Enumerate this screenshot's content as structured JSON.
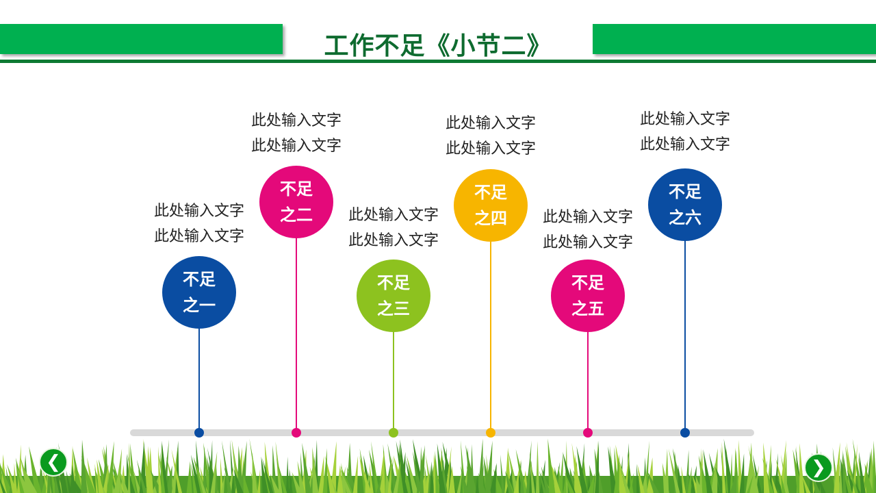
{
  "header": {
    "title": "工作不足《小节二》",
    "accent": "#00b050"
  },
  "items": [
    {
      "line1": "不足",
      "line2": "之一",
      "text1": "此处输入文字",
      "text2": "此处输入文字",
      "color": "#0a4da2"
    },
    {
      "line1": "不足",
      "line2": "之二",
      "text1": "此处输入文字",
      "text2": "此处输入文字",
      "color": "#e4097a"
    },
    {
      "line1": "不足",
      "line2": "之三",
      "text1": "此处输入文字",
      "text2": "此处输入文字",
      "color": "#8dc21f"
    },
    {
      "line1": "不足",
      "line2": "之四",
      "text1": "此处输入文字",
      "text2": "此处输入文字",
      "color": "#f7b500"
    },
    {
      "line1": "不足",
      "line2": "之五",
      "text1": "此处输入文字",
      "text2": "此处输入文字",
      "color": "#e4097a"
    },
    {
      "line1": "不足",
      "line2": "之六",
      "text1": "此处输入文字",
      "text2": "此处输入文字",
      "color": "#0a4da2"
    }
  ],
  "nav": {
    "prev_icon": "chevron-left-icon",
    "next_icon": "chevron-right-icon",
    "prev": "❮",
    "next": "❯"
  }
}
